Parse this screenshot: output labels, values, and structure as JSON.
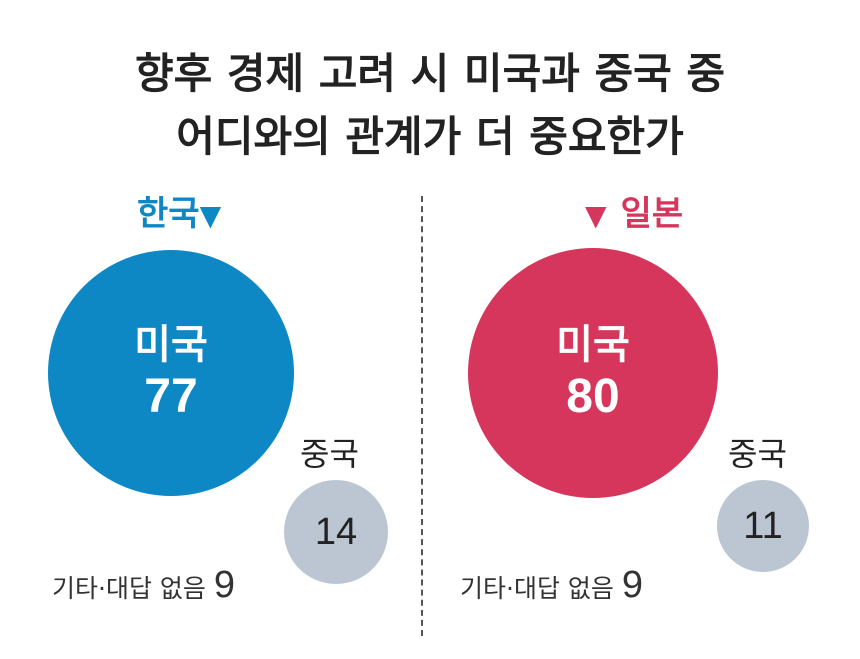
{
  "chart_data": {
    "type": "bubble",
    "title_line1": "향후 경제 고려 시 미국과 중국 중",
    "title_line2": "어디와의 관계가 더 중요한가",
    "panels": [
      {
        "country": "한국",
        "marker": "▼",
        "color": "#0E88C4",
        "us_label": "미국",
        "us_value": 77,
        "cn_label": "중국",
        "cn_value": 14,
        "other_label": "기타·대답 없음",
        "other_value": 9
      },
      {
        "country": "일본",
        "marker": "▼",
        "color": "#D6365B",
        "us_label": "미국",
        "us_value": 80,
        "cn_label": "중국",
        "cn_value": 11,
        "other_label": "기타·대답 없음",
        "other_value": 9
      }
    ],
    "small_circle_color": "#BCC6D3"
  }
}
